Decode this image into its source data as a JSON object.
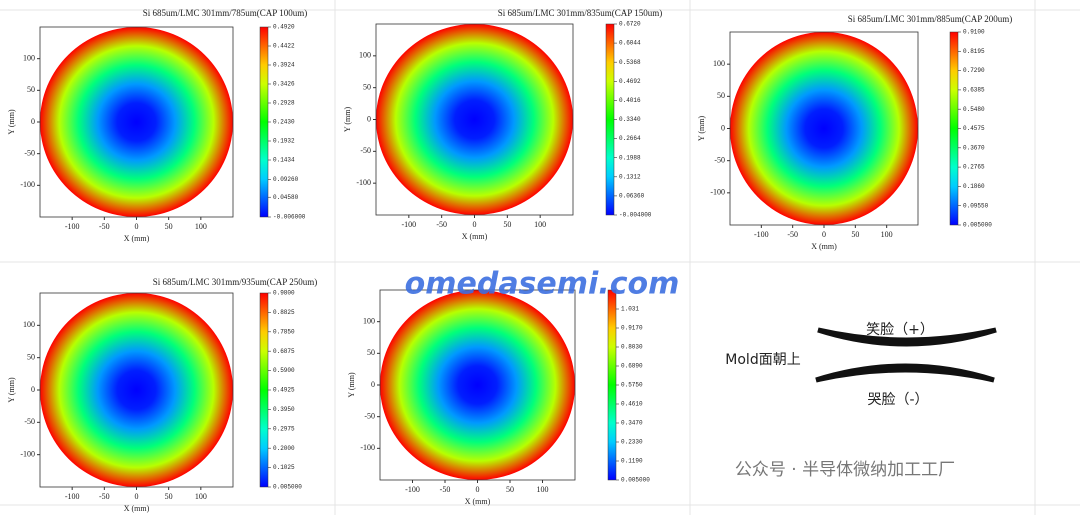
{
  "chart_data": [
    {
      "type": "contour",
      "title": "Si 685um/LMC 301mm/785um(CAP 100um)",
      "xlabel": "X (mm)",
      "ylabel": "Y (mm)",
      "xlim": [
        -150,
        150
      ],
      "ylim": [
        -150,
        150
      ],
      "xticks": [
        -100,
        -50,
        0,
        50,
        100
      ],
      "yticks": [
        -100,
        -50,
        0,
        50,
        100
      ],
      "r": [
        0,
        30,
        60,
        90,
        120,
        150
      ],
      "values": [
        -0.006,
        0.009,
        0.069,
        0.183,
        0.333,
        0.492
      ],
      "zlim": [
        -0.006,
        0.492
      ],
      "zticks": [
        {
          "value": -0.006,
          "label": "-0.006000"
        },
        {
          "value": 0.0458,
          "label": "0.04580"
        },
        {
          "value": 0.0926,
          "label": "0.09260"
        },
        0.1434,
        0.1932,
        {
          "value": 0.243,
          "label": "0.2430"
        },
        0.2928,
        0.3426,
        0.3924,
        0.4422,
        {
          "value": 0.492,
          "label": "0.4920"
        }
      ]
    },
    {
      "type": "contour",
      "title": "Si 685um/LMC 301mm/835um(CAP 150um)",
      "xlabel": "X (mm)",
      "ylabel": "Y (mm)",
      "xlim": [
        -150,
        150
      ],
      "ylim": [
        -150,
        150
      ],
      "xticks": [
        -100,
        -50,
        0,
        50,
        100
      ],
      "yticks": [
        -100,
        -50,
        0,
        50,
        100
      ],
      "r": [
        0,
        30,
        60,
        90,
        120,
        150
      ],
      "values": [
        -0.004,
        0.016,
        0.097,
        0.253,
        0.456,
        0.672
      ],
      "zlim": [
        -0.004,
        0.672
      ],
      "zticks": [
        {
          "value": -0.004,
          "label": "-0.004000"
        },
        {
          "value": 0.0636,
          "label": "0.06360"
        },
        0.1312,
        0.1988,
        0.2664,
        {
          "value": 0.334,
          "label": "0.3340"
        },
        0.4016,
        0.4692,
        0.5368,
        0.6044,
        {
          "value": 0.672,
          "label": "0.6720"
        }
      ]
    },
    {
      "type": "contour",
      "title": "Si 685um/LMC 301mm/885um(CAP 200um)",
      "xlabel": "X (mm)",
      "ylabel": "Y (mm)",
      "xlim": [
        -150,
        150
      ],
      "ylim": [
        -150,
        150
      ],
      "xticks": [
        -100,
        -50,
        0,
        50,
        100
      ],
      "yticks": [
        -100,
        -50,
        0,
        50,
        100
      ],
      "r": [
        0,
        30,
        60,
        90,
        120,
        150
      ],
      "values": [
        0.005,
        0.032,
        0.141,
        0.349,
        0.62,
        0.91
      ],
      "zlim": [
        0.005,
        0.91
      ],
      "zticks": [
        {
          "value": 0.005,
          "label": "0.005000"
        },
        {
          "value": 0.0955,
          "label": "0.09550"
        },
        {
          "value": 0.186,
          "label": "0.1860"
        },
        0.2765,
        {
          "value": 0.367,
          "label": "0.3670"
        },
        0.4575,
        {
          "value": 0.548,
          "label": "0.5480"
        },
        0.6385,
        {
          "value": 0.729,
          "label": "0.7290"
        },
        0.8195,
        {
          "value": 0.91,
          "label": "0.9100"
        }
      ]
    },
    {
      "type": "contour",
      "title": "Si 685um/LMC 301mm/935um(CAP 250um)",
      "xlabel": "X (mm)",
      "ylabel": "Y (mm)",
      "xlim": [
        -150,
        150
      ],
      "ylim": [
        -150,
        150
      ],
      "xticks": [
        -100,
        -50,
        0,
        50,
        100
      ],
      "yticks": [
        -100,
        -50,
        0,
        50,
        100
      ],
      "r": [
        0,
        30,
        60,
        90,
        120,
        150
      ],
      "values": [
        0.005,
        0.034,
        0.151,
        0.376,
        0.668,
        0.98
      ],
      "zlim": [
        0.005,
        0.98
      ],
      "zticks": [
        {
          "value": 0.005,
          "label": "0.005000"
        },
        0.1025,
        {
          "value": 0.2,
          "label": "0.2000"
        },
        0.2975,
        {
          "value": 0.395,
          "label": "0.3950"
        },
        0.4925,
        {
          "value": 0.59,
          "label": "0.5900"
        },
        0.6875,
        {
          "value": 0.785,
          "label": "0.7850"
        },
        0.8825,
        {
          "value": 0.98,
          "label": "0.9800"
        }
      ]
    },
    {
      "type": "contour",
      "xlabel": "X (mm)",
      "ylabel": "Y (mm)",
      "xlim": [
        -150,
        150
      ],
      "ylim": [
        -150,
        150
      ],
      "xticks": [
        -100,
        -50,
        0,
        50,
        100
      ],
      "yticks": [
        -100,
        -50,
        0,
        50,
        100
      ],
      "r": [
        0,
        30,
        60,
        90,
        120,
        150
      ],
      "values": [
        0.005,
        0.039,
        0.176,
        0.438,
        0.78,
        1.145
      ],
      "zlim": [
        0.005,
        1.145
      ],
      "zticks": [
        {
          "value": 0.005,
          "label": "0.005000"
        },
        {
          "value": 0.119,
          "label": "0.1190"
        },
        {
          "value": 0.233,
          "label": "0.2330"
        },
        {
          "value": 0.347,
          "label": "0.3470"
        },
        {
          "value": 0.461,
          "label": "0.4610"
        },
        {
          "value": 0.575,
          "label": "0.5750"
        },
        {
          "value": 0.689,
          "label": "0.6890"
        },
        {
          "value": 0.803,
          "label": "0.8030"
        },
        {
          "value": 0.917,
          "label": "0.9170"
        },
        1.031
      ]
    }
  ],
  "annotations": {
    "watermark": "omedasemi.com",
    "orientation": "Mold面朝上",
    "smile": "笑脸（+）",
    "cry": "哭脸（-）",
    "footer": "公众号 · 半导体微纳加工工厂"
  }
}
